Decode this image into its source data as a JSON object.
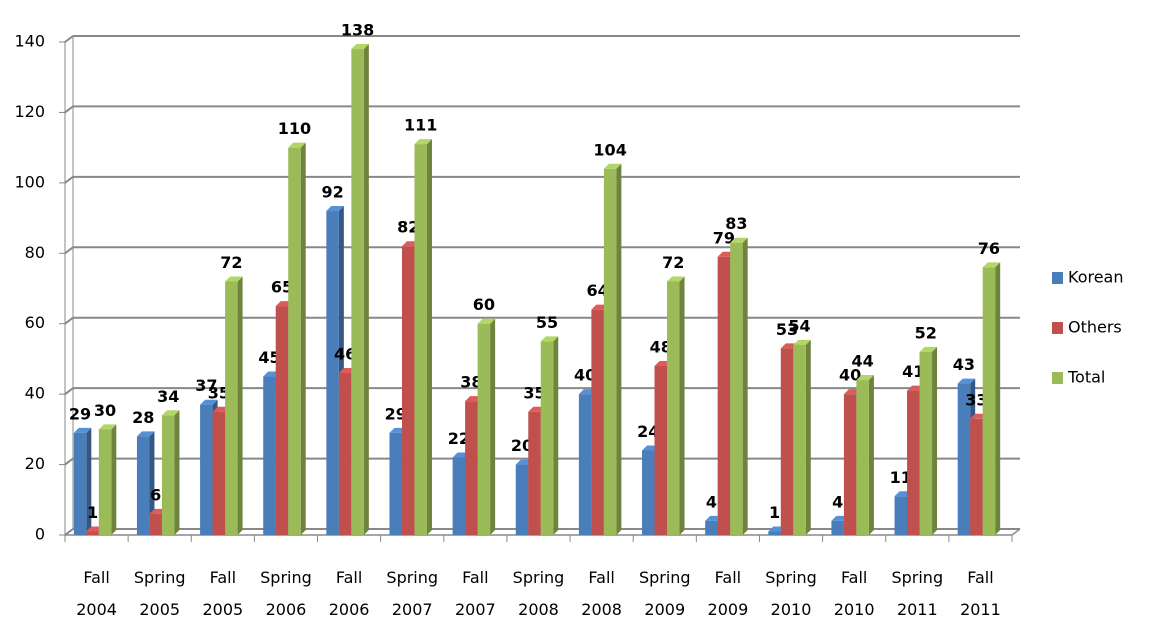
{
  "chart_data": {
    "type": "bar",
    "categories": [
      "Fall 2004",
      "Spring 2005",
      "Fall 2005",
      "Spring 2006",
      "Fall 2006",
      "Spring 2007",
      "Fall 2007",
      "Spring 2008",
      "Fall 2008",
      "Spring 2009",
      "Fall 2009",
      "Spring 2010",
      "Fall 2010",
      "Spring 2011",
      "Fall 2011"
    ],
    "series": [
      {
        "name": "Korean",
        "color": "#4a7ebb",
        "values": [
          29,
          28,
          37,
          45,
          92,
          29,
          22,
          20,
          40,
          24,
          4,
          1,
          4,
          11,
          43
        ]
      },
      {
        "name": "Others",
        "color": "#c0504d",
        "values": [
          1,
          6,
          35,
          65,
          46,
          82,
          38,
          35,
          64,
          48,
          79,
          53,
          40,
          41,
          33
        ]
      },
      {
        "name": "Total",
        "color": "#9bbb59",
        "values": [
          30,
          34,
          72,
          110,
          138,
          111,
          60,
          55,
          104,
          72,
          83,
          54,
          44,
          52,
          76
        ]
      }
    ],
    "ylim": [
      0,
      140
    ],
    "yticks": [
      0,
      20,
      40,
      60,
      80,
      100,
      120,
      140
    ],
    "grid": true,
    "legend": "right"
  }
}
